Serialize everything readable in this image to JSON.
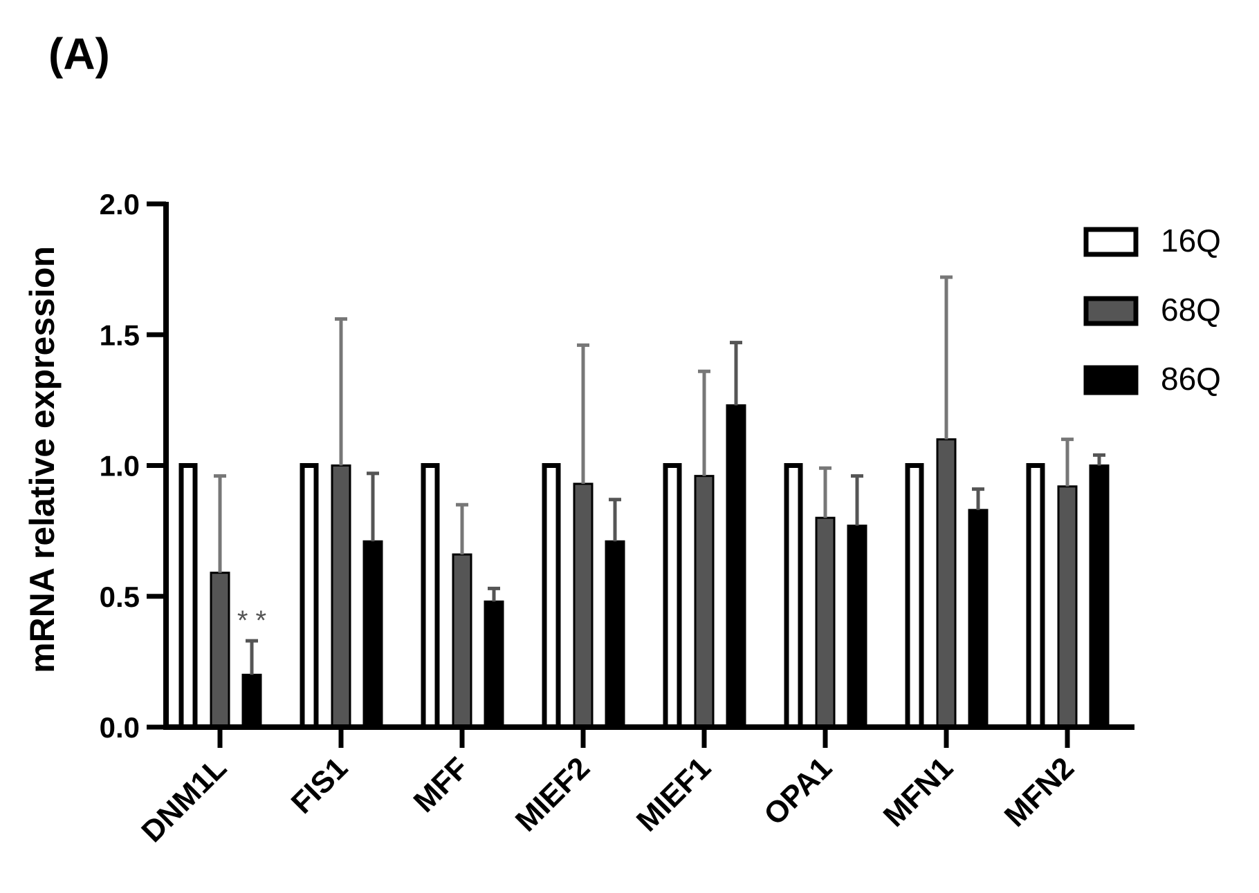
{
  "chart_data": {
    "type": "bar",
    "panel_label": "(A)",
    "ylabel": "mRNA relative expression",
    "xlabel": "",
    "ylim": [
      0,
      2.0
    ],
    "yticks": [
      "0.0",
      "0.5",
      "1.0",
      "1.5",
      "2.0"
    ],
    "categories": [
      "DNM1L",
      "FIS1",
      "MFF",
      "MIEF2",
      "MIEF1",
      "OPA1",
      "MFN1",
      "MFN2"
    ],
    "series": [
      {
        "name": "16Q",
        "fill": "#ffffff",
        "stroke": "#000000",
        "values": [
          1.0,
          1.0,
          1.0,
          1.0,
          1.0,
          1.0,
          1.0,
          1.0
        ],
        "errors": [
          0,
          0,
          0,
          0,
          0,
          0,
          0,
          0
        ]
      },
      {
        "name": "68Q",
        "fill": "#555555",
        "stroke": "#000000",
        "error_color": "#777777",
        "values": [
          0.59,
          1.0,
          0.66,
          0.93,
          0.96,
          0.8,
          1.1,
          0.92
        ],
        "errors": [
          0.37,
          0.56,
          0.19,
          0.53,
          0.4,
          0.19,
          0.62,
          0.18
        ]
      },
      {
        "name": "86Q",
        "fill": "#000000",
        "stroke": "#000000",
        "error_color": "#555555",
        "values": [
          0.2,
          0.71,
          0.48,
          0.71,
          1.23,
          0.77,
          0.83,
          1.0
        ],
        "errors": [
          0.13,
          0.26,
          0.05,
          0.16,
          0.24,
          0.19,
          0.08,
          0.04
        ]
      }
    ],
    "annotations": [
      {
        "category": "DNM1L",
        "series": "86Q",
        "text": "* *"
      }
    ],
    "legend": "top-right",
    "grid": false
  }
}
